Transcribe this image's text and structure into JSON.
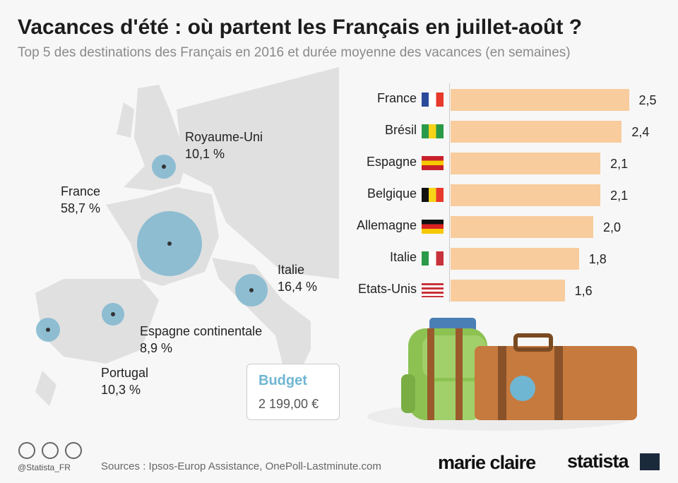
{
  "header": {
    "title": "Vacances d'été : où partent les Français en juillet-août ?",
    "subtitle": "Top 5 des destinations des Français en 2016 et durée moyenne des vacances (en semaines)"
  },
  "map": {
    "bubble_color": "#7fb6cf",
    "points": [
      {
        "name": "Royaume-Uni",
        "value": "10,1 %"
      },
      {
        "name": "France",
        "value": "58,7 %"
      },
      {
        "name": "Italie",
        "value": "16,4 %"
      },
      {
        "name": "Espagne continentale",
        "value": "8,9 %"
      },
      {
        "name": "Portugal",
        "value": "10,3 %"
      }
    ]
  },
  "budget": {
    "title": "Budget",
    "value": "2 199,00 €"
  },
  "chart_data": {
    "type": "bar",
    "orientation": "horizontal",
    "bar_color": "#f8cc9d",
    "categories": [
      "France",
      "Brésil",
      "Espagne",
      "Belgique",
      "Allemagne",
      "Italie",
      "Etats-Unis"
    ],
    "values": [
      2.5,
      2.4,
      2.1,
      2.1,
      2.0,
      1.8,
      1.6
    ],
    "labels": [
      "2,5",
      "2,4",
      "2,1",
      "2,1",
      "2,0",
      "1,8",
      "1,6"
    ],
    "flags": [
      "france-flag",
      "brazil-flag",
      "spain-flag",
      "belgium-flag",
      "germany-flag",
      "italy-flag",
      "usa-flag"
    ]
  },
  "footer": {
    "sources": "Sources : Ipsos-Europ Assistance, OnePoll-Lastminute.com",
    "handle": "@Statista_FR",
    "logo1": "marie claire",
    "logo2": "statista"
  }
}
